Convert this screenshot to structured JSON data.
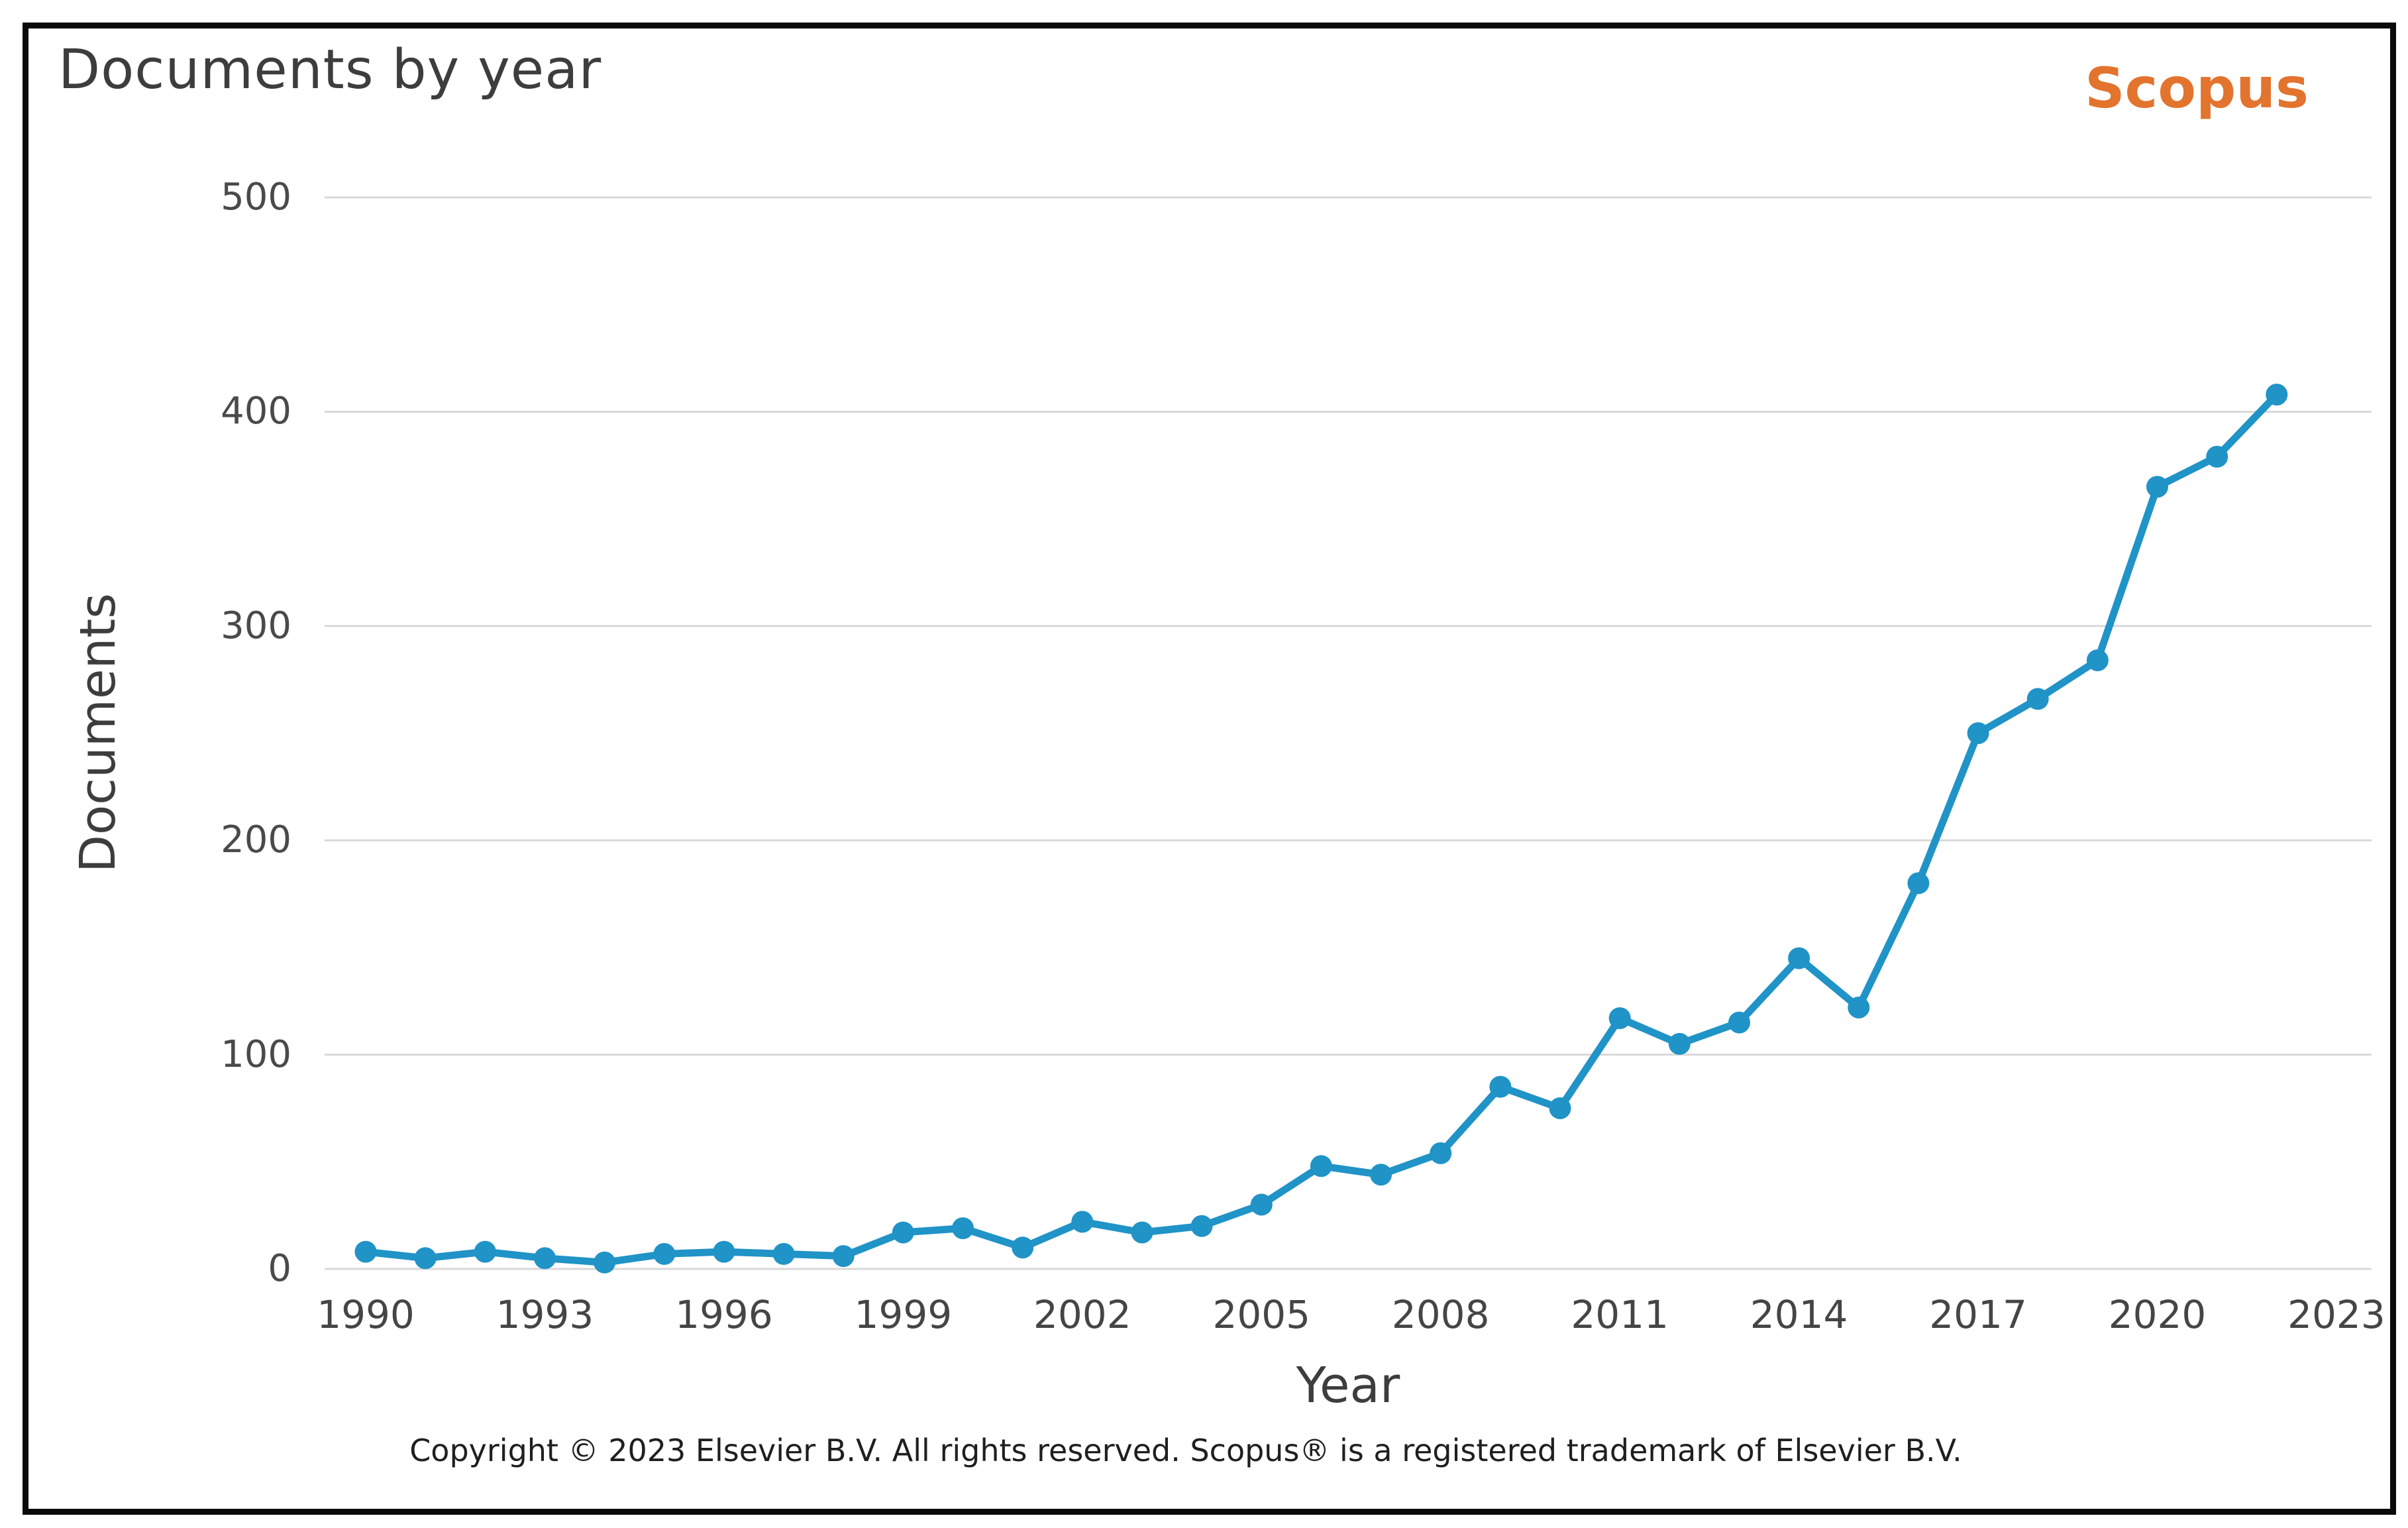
{
  "header": {
    "title": "Documents by year",
    "logo": "Scopus"
  },
  "footer": {
    "copyright": "Copyright © 2023 Elsevier B.V. All rights reserved. Scopus® is a registered trademark of Elsevier B.V."
  },
  "colors": {
    "accent_orange": "#e2742e",
    "line": "#2093c7",
    "marker": "#2093c7",
    "gridline": "#d8d8d8",
    "title_text": "#3d3d3d",
    "tick_text": "#4a4a4a",
    "frame_border": "#0a0a0a",
    "background": "#ffffff"
  },
  "chart_data": {
    "type": "line",
    "title": "Documents by year",
    "xlabel": "Year",
    "ylabel": "Documents",
    "x_ticks": [
      1990,
      1993,
      1996,
      1999,
      2002,
      2005,
      2008,
      2011,
      2014,
      2017,
      2020,
      2023
    ],
    "y_ticks": [
      0,
      100,
      200,
      300,
      400,
      500
    ],
    "xlim": [
      1989.3,
      2023.6
    ],
    "ylim": [
      0,
      500
    ],
    "grid": "horizontal-only",
    "legend_position": "none",
    "marker_style": "filled-circle",
    "series": [
      {
        "name": "Documents",
        "x": [
          1990,
          1991,
          1992,
          1993,
          1994,
          1995,
          1996,
          1997,
          1998,
          1999,
          2000,
          2001,
          2002,
          2003,
          2004,
          2005,
          2006,
          2007,
          2008,
          2009,
          2010,
          2011,
          2012,
          2013,
          2014,
          2015,
          2016,
          2017,
          2018,
          2019,
          2020,
          2021,
          2022
        ],
        "values": [
          8,
          5,
          8,
          5,
          3,
          7,
          8,
          7,
          6,
          17,
          19,
          10,
          22,
          17,
          20,
          30,
          48,
          44,
          54,
          85,
          75,
          117,
          105,
          115,
          145,
          122,
          180,
          250,
          266,
          284,
          365,
          379,
          408
        ]
      }
    ]
  }
}
